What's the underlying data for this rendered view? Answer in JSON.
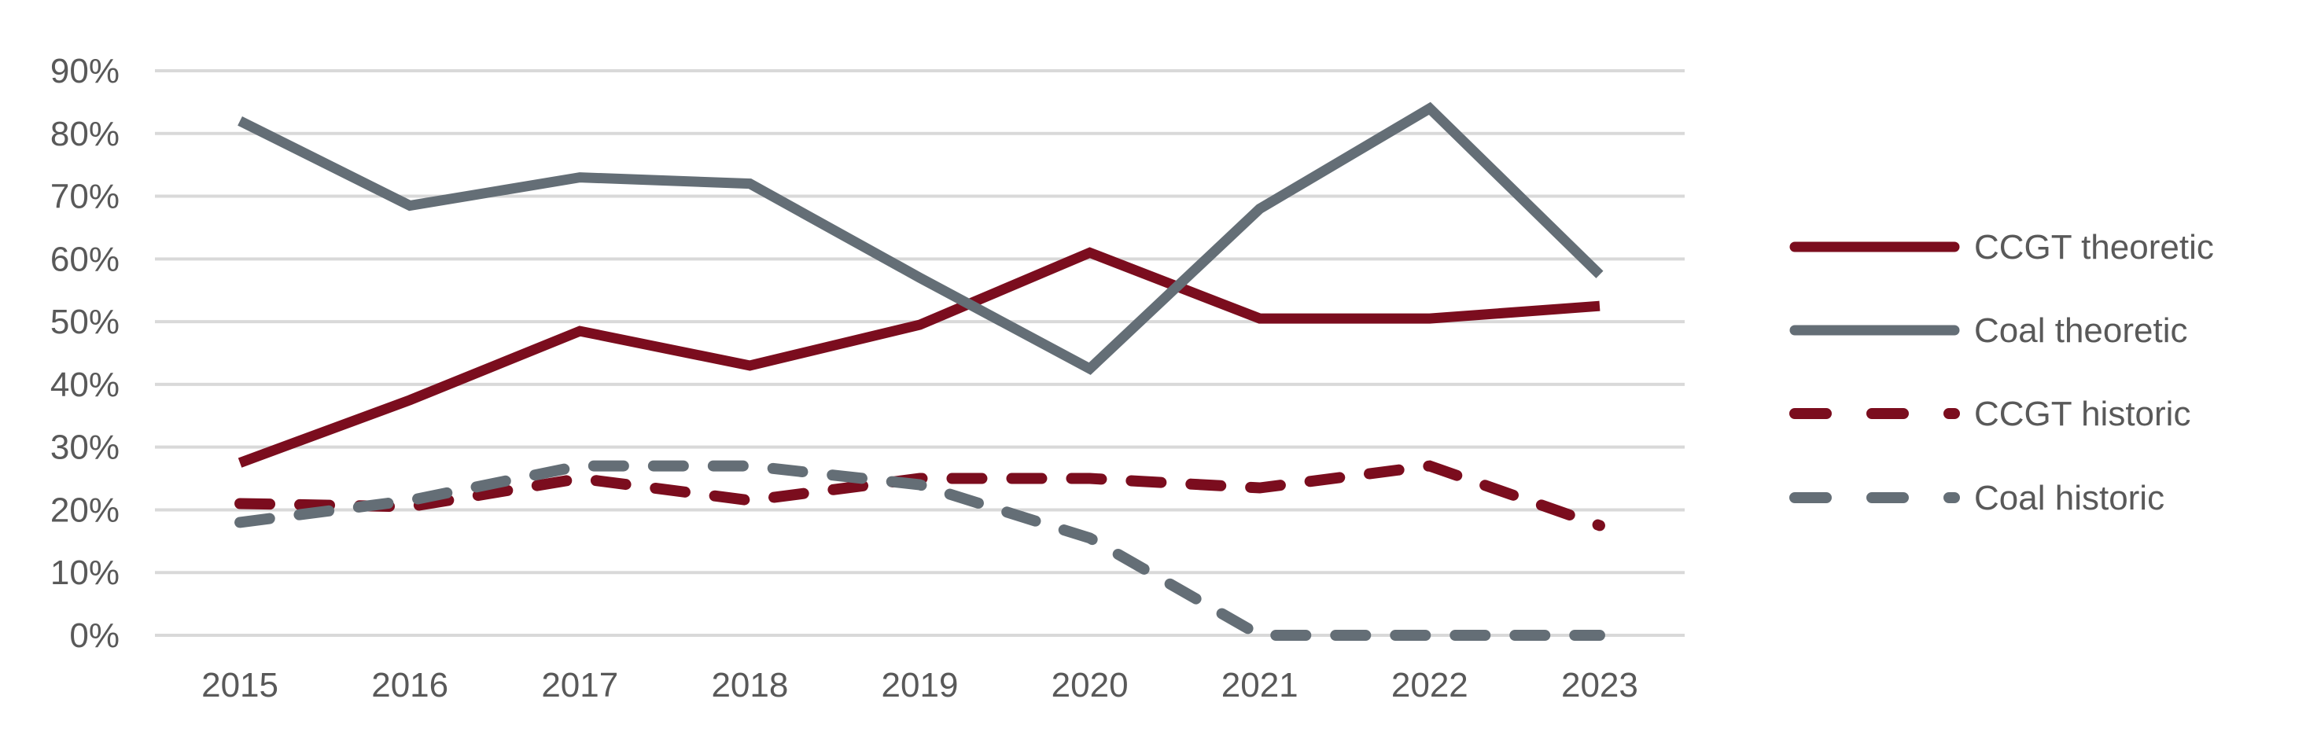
{
  "chart_data": {
    "type": "line",
    "title": "",
    "xlabel": "",
    "ylabel": "",
    "categories": [
      "2015",
      "2016",
      "2017",
      "2018",
      "2019",
      "2020",
      "2021",
      "2022",
      "2023"
    ],
    "ylim": [
      0,
      90
    ],
    "yticks": [
      0,
      10,
      20,
      30,
      40,
      50,
      60,
      70,
      80,
      90
    ],
    "ytick_labels": [
      "0%",
      "10%",
      "20%",
      "30%",
      "40%",
      "50%",
      "60%",
      "70%",
      "80%",
      "90%"
    ],
    "grid": "horizontal",
    "legend_position": "right",
    "series": [
      {
        "name": "CCGT theoretic",
        "color": "#7B0D1E",
        "style": "solid",
        "values": [
          27.5,
          37.5,
          48.5,
          43,
          49.5,
          61,
          50.5,
          50.5,
          52.5
        ]
      },
      {
        "name": "Coal theoretic",
        "color": "#646E76",
        "style": "solid",
        "values": [
          82,
          68.5,
          73,
          72,
          57,
          42.5,
          68,
          84,
          57.5
        ]
      },
      {
        "name": "CCGT historic",
        "color": "#7B0D1E",
        "style": "dashed",
        "values": [
          21,
          20.5,
          25,
          21.5,
          25,
          25,
          23.5,
          27,
          17.5
        ]
      },
      {
        "name": "Coal historic",
        "color": "#646E76",
        "style": "dashed",
        "values": [
          18,
          21.5,
          27,
          27,
          24,
          15.5,
          0,
          0,
          0
        ]
      }
    ]
  }
}
